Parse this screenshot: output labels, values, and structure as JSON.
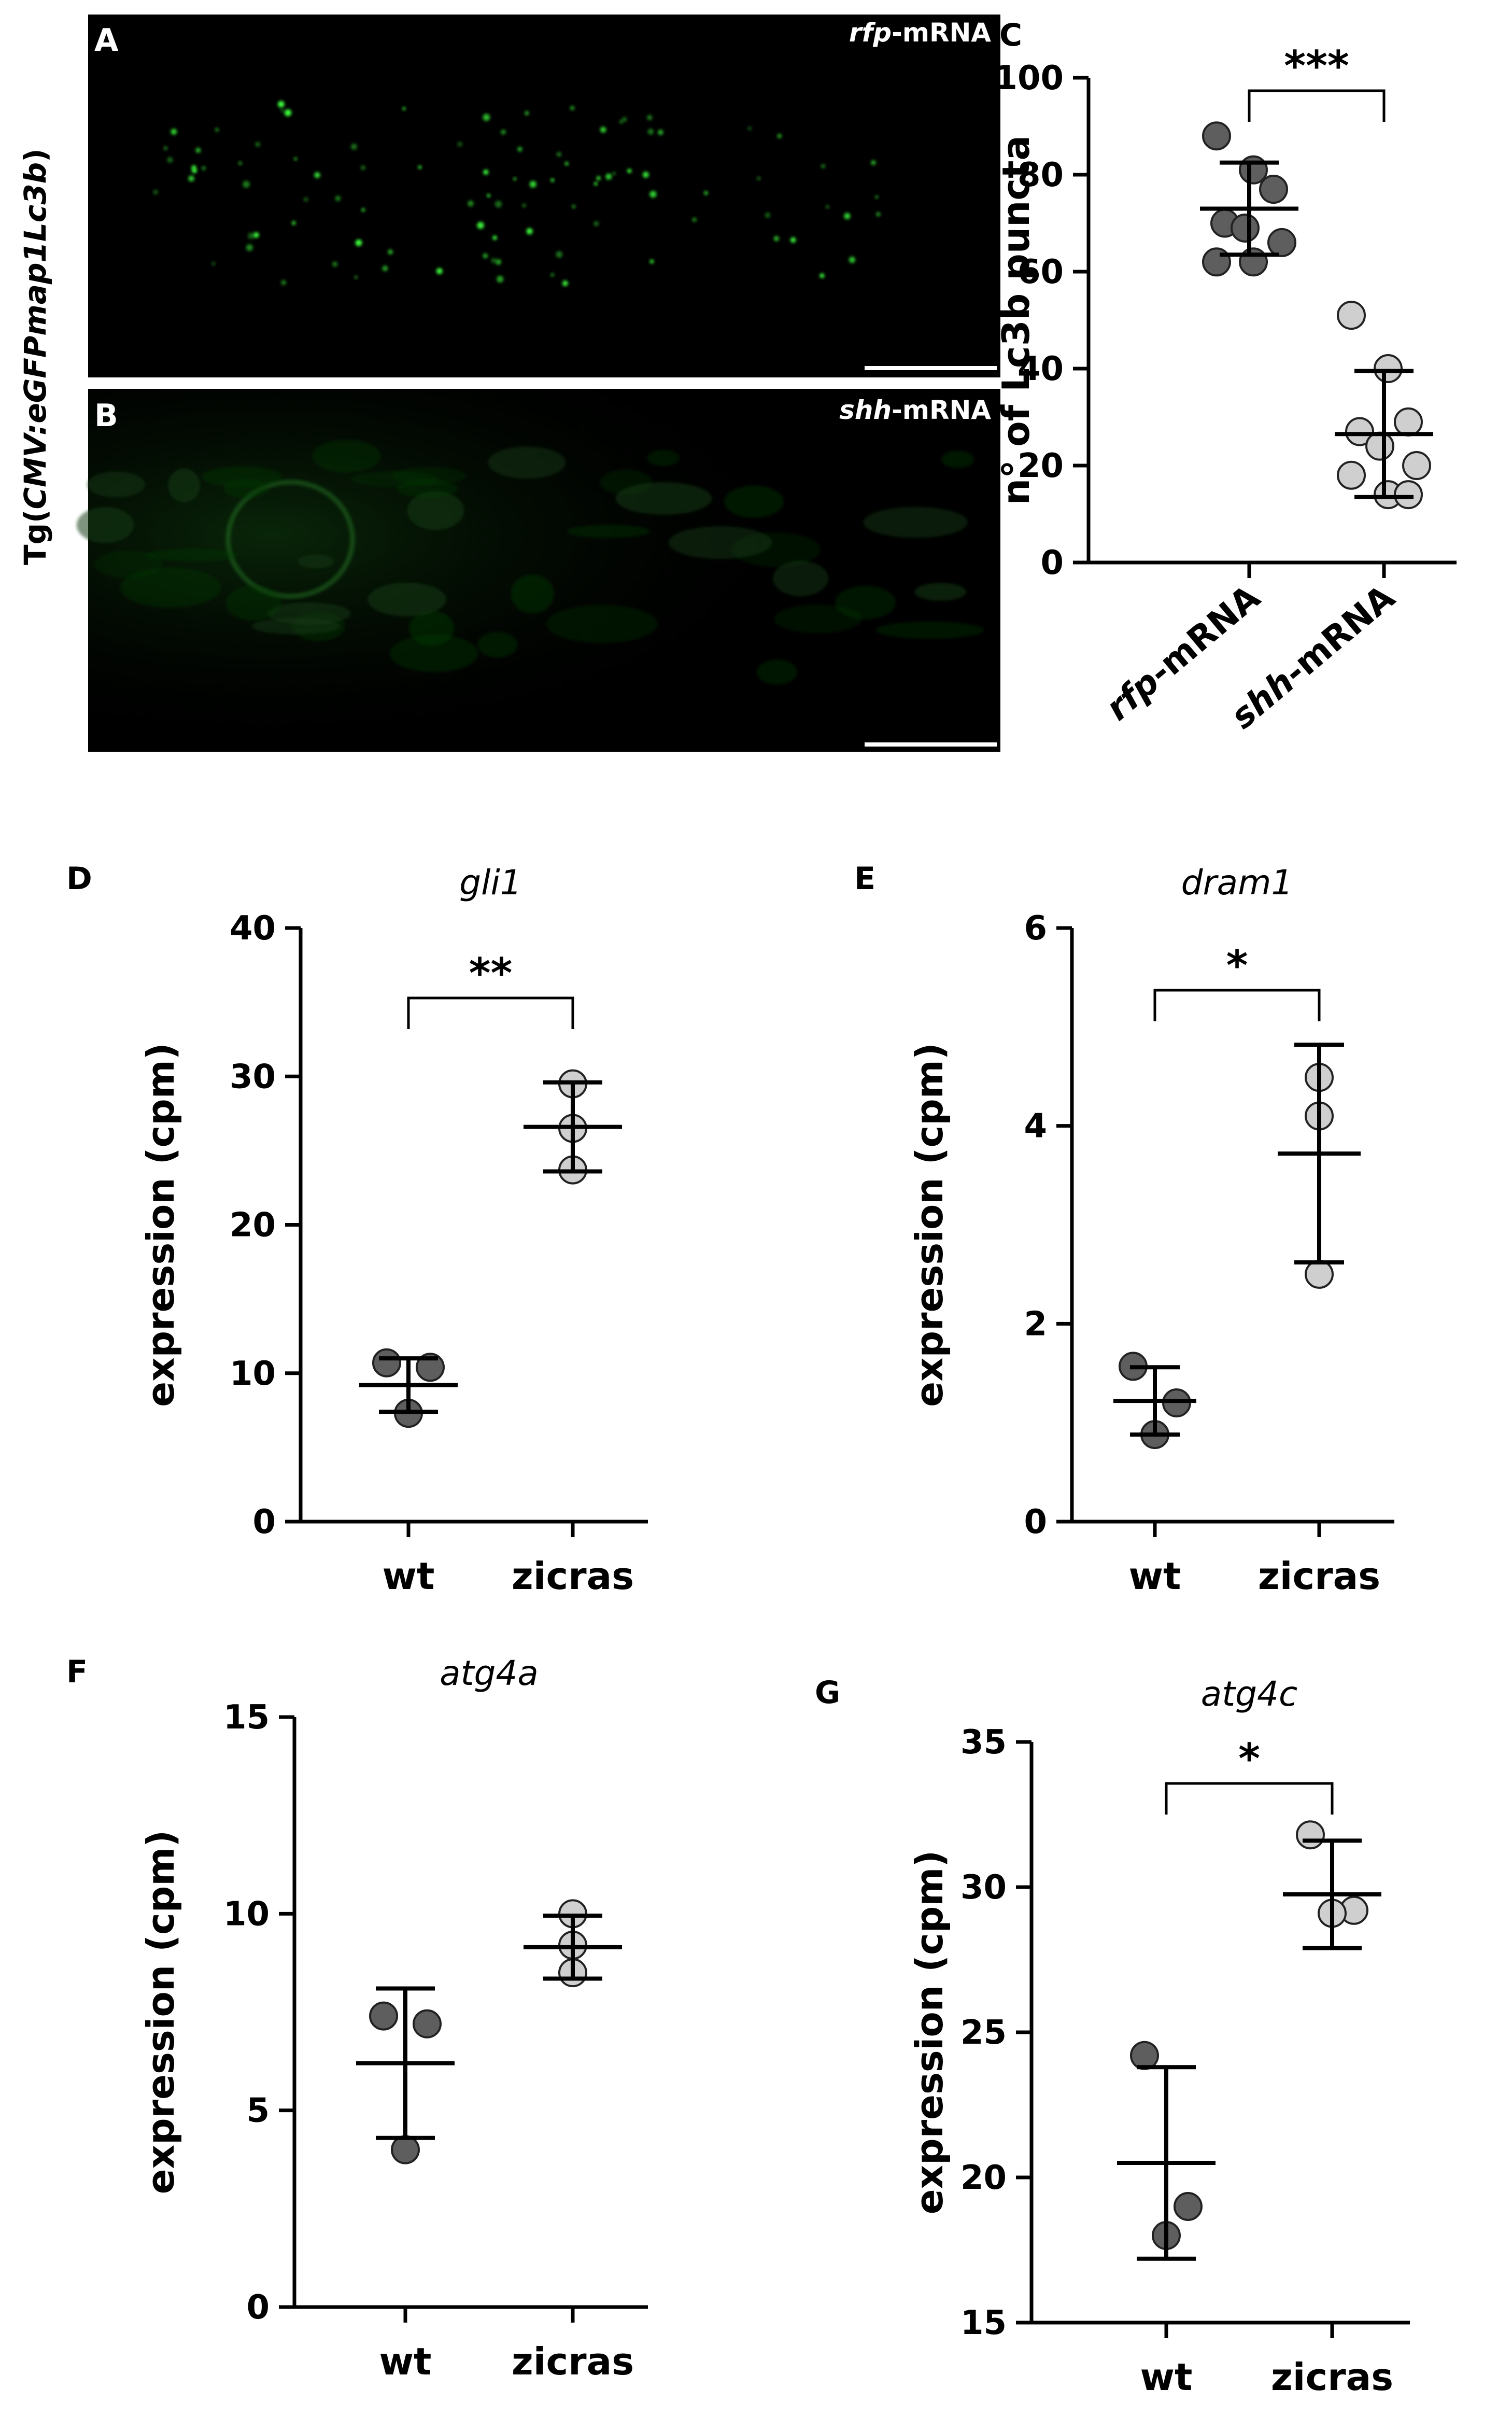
{
  "figure": {
    "side_label": {
      "prefix": "Tg(",
      "italic": "CMV:eGFPmap1Lc3b",
      "suffix": ")"
    }
  },
  "micrographs": [
    {
      "letter": "A",
      "tag_italic": "rfp",
      "tag_rest": "-mRNA"
    },
    {
      "letter": "B",
      "tag_italic": "shh",
      "tag_rest": "-mRNA"
    }
  ],
  "chart_data": [
    {
      "panel": "C",
      "type": "scatter",
      "title": "",
      "ylabel": "n° of Lc3b puncta",
      "ylim": [
        0,
        100
      ],
      "yticks": [
        0,
        20,
        40,
        60,
        80,
        100
      ],
      "categories": [
        {
          "italic": "rfp",
          "rest": "-mRNA"
        },
        {
          "italic": "shh",
          "rest": "-mRNA"
        }
      ],
      "series": [
        {
          "points": [
            88,
            81,
            77,
            70,
            69,
            66,
            62,
            62
          ],
          "mean": 73,
          "sd": 9.5,
          "fill": "#5e5e5e"
        },
        {
          "points": [
            51,
            40,
            29,
            27,
            24,
            20,
            18,
            14,
            14
          ],
          "mean": 26.5,
          "sd": 13,
          "fill": "#cfcfcf"
        }
      ],
      "significance": "***"
    },
    {
      "panel": "D",
      "type": "scatter",
      "title": "gli1",
      "ylabel": "expression (cpm)",
      "ylim": [
        0,
        40
      ],
      "yticks": [
        0,
        10,
        20,
        30,
        40
      ],
      "categories": [
        {
          "italic": "",
          "rest": "wt"
        },
        {
          "italic": "",
          "rest": "zicras"
        }
      ],
      "series": [
        {
          "points": [
            10.7,
            10.4,
            7.3
          ],
          "mean": 9.2,
          "sd": 1.8,
          "fill": "#5e5e5e"
        },
        {
          "points": [
            29.5,
            26.5,
            23.7
          ],
          "mean": 26.6,
          "sd": 3.0,
          "fill": "#cfcfcf"
        }
      ],
      "significance": "**"
    },
    {
      "panel": "E",
      "type": "scatter",
      "title": "dram1",
      "ylabel": "expression (cpm)",
      "ylim": [
        0,
        6
      ],
      "yticks": [
        0,
        2,
        4,
        6
      ],
      "categories": [
        {
          "italic": "",
          "rest": "wt"
        },
        {
          "italic": "",
          "rest": "zicras"
        }
      ],
      "series": [
        {
          "points": [
            1.57,
            1.2,
            0.88
          ],
          "mean": 1.22,
          "sd": 0.34,
          "fill": "#5e5e5e"
        },
        {
          "points": [
            4.49,
            4.1,
            2.5
          ],
          "mean": 3.72,
          "sd": 1.1,
          "fill": "#cfcfcf"
        }
      ],
      "significance": "*"
    },
    {
      "panel": "F",
      "type": "scatter",
      "title": "atg4a",
      "ylabel": "expression (cpm)",
      "ylim": [
        0,
        15
      ],
      "yticks": [
        0,
        5,
        10,
        15
      ],
      "categories": [
        {
          "italic": "",
          "rest": "wt"
        },
        {
          "italic": "",
          "rest": "zicras"
        }
      ],
      "series": [
        {
          "points": [
            7.4,
            7.2,
            4.0
          ],
          "mean": 6.2,
          "sd": 1.9,
          "fill": "#5e5e5e"
        },
        {
          "points": [
            10.0,
            9.2,
            8.5
          ],
          "mean": 9.15,
          "sd": 0.8,
          "fill": "#cfcfcf"
        }
      ],
      "significance": ""
    },
    {
      "panel": "G",
      "type": "scatter",
      "title": "atg4c",
      "ylabel": "expression (cpm)",
      "ylim": [
        15,
        35
      ],
      "yticks": [
        15,
        20,
        25,
        30,
        35
      ],
      "categories": [
        {
          "italic": "",
          "rest": "wt"
        },
        {
          "italic": "",
          "rest": "zicras"
        }
      ],
      "series": [
        {
          "points": [
            24.2,
            19.0,
            18.0
          ],
          "mean": 20.5,
          "sd": 3.3,
          "fill": "#5e5e5e"
        },
        {
          "points": [
            31.8,
            29.2,
            29.1
          ],
          "mean": 29.75,
          "sd": 1.85,
          "fill": "#cfcfcf"
        }
      ],
      "significance": "*"
    }
  ]
}
